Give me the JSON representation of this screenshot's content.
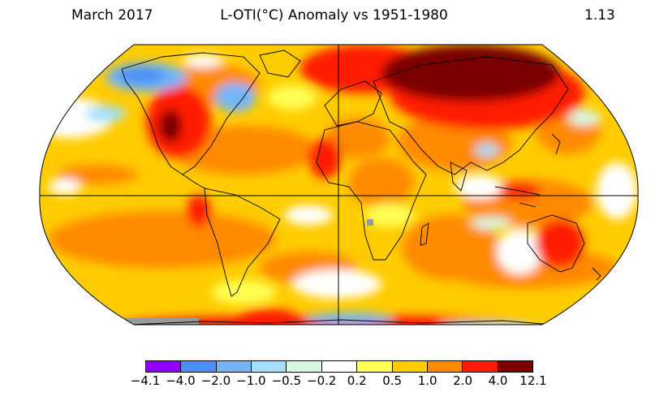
{
  "header": {
    "date": "March 2017",
    "title": "L-OTI(°C) Anomaly vs 1951-1980",
    "global_mean": "1.13"
  },
  "legend": {
    "ticks": [
      "−4.1",
      "−4.0",
      "−2.0",
      "−1.0",
      "−0.5",
      "−0.2",
      "0.2",
      "0.5",
      "1.0",
      "2.0",
      "4.0",
      "12.1"
    ],
    "colors": [
      "#8f00ff",
      "#4a8ff5",
      "#72b6f8",
      "#a2e0f8",
      "#d6f8e0",
      "#ffffff",
      "#ffff55",
      "#ffcc00",
      "#ff8a00",
      "#ff1a00",
      "#7a0000"
    ]
  },
  "map": {
    "projection": "robinson",
    "background_anomaly_color": "#ffcc00",
    "missing_data_color": "#9a9a9a",
    "gridlines": [
      "equator",
      "prime-meridian"
    ]
  }
}
